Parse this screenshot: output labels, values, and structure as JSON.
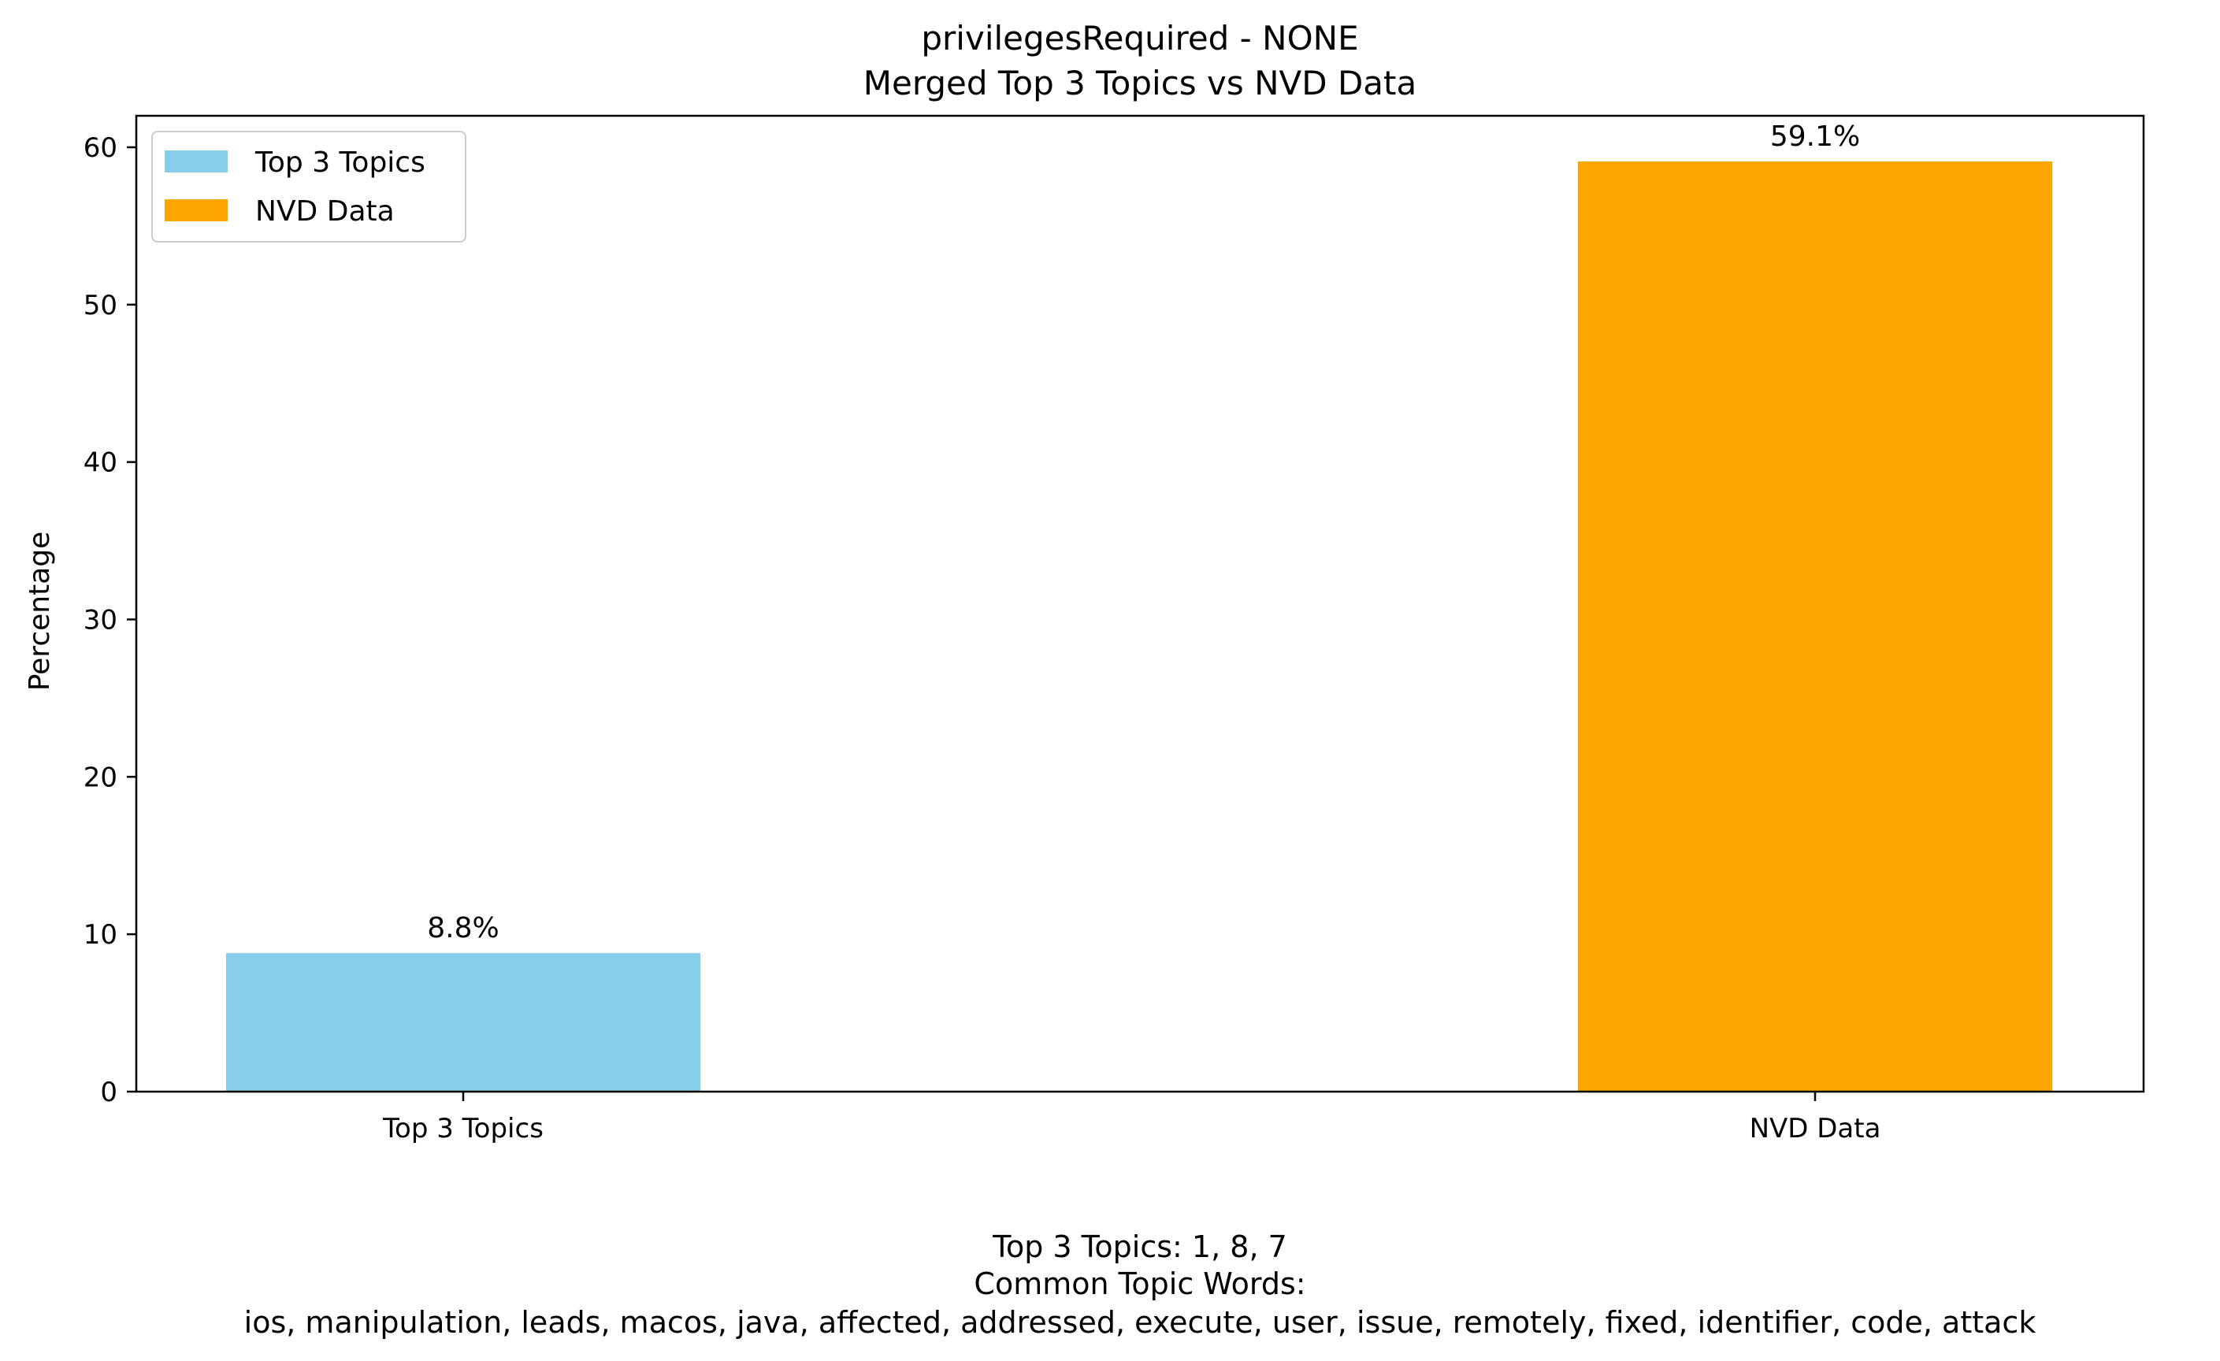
{
  "chart_data": {
    "type": "bar",
    "title_line1": "privilegesRequired - NONE",
    "title_line2": "Merged Top 3 Topics vs NVD Data",
    "categories": [
      "Top 3 Topics",
      "NVD Data"
    ],
    "values": [
      8.8,
      59.1
    ],
    "value_labels": [
      "8.8%",
      "59.1%"
    ],
    "colors": [
      "#87CEEB",
      "#FFA500"
    ],
    "xlabel": "",
    "ylabel": "Percentage",
    "ylim": [
      0,
      62
    ],
    "yticks": [
      0,
      10,
      20,
      30,
      40,
      50,
      60
    ],
    "legend": {
      "placement": "upper-left",
      "entries": [
        {
          "label": "Top 3 Topics",
          "color": "#87CEEB"
        },
        {
          "label": "NVD Data",
          "color": "#FFA500"
        }
      ]
    },
    "grid": false
  },
  "footer": {
    "line1": "Top 3 Topics: 1, 8, 7",
    "line2": "Common Topic Words:",
    "line3": "ios,  manipulation,  leads,  macos,  java,  affected,  addressed,  execute,  user,  issue,  remotely,  fixed,  identifier,  code,  attack"
  }
}
